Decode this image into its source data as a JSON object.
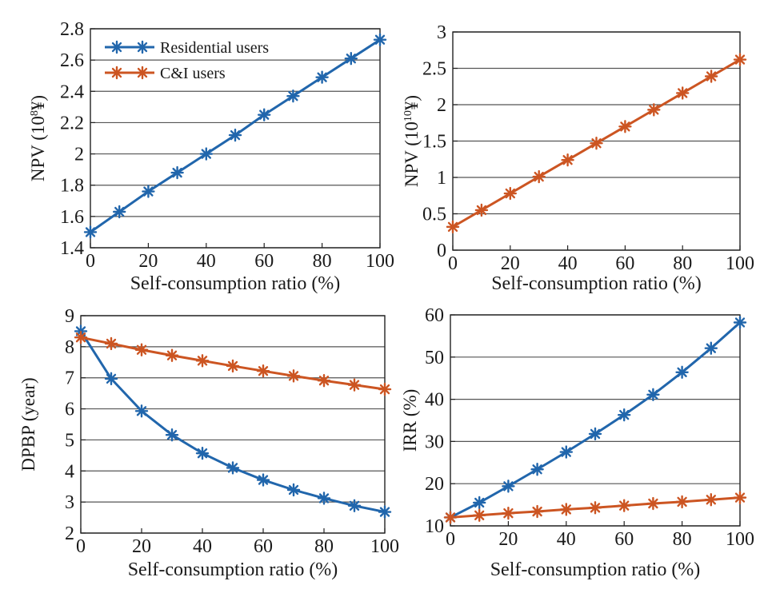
{
  "colors": {
    "residential": "#2166ac",
    "ci": "#cc5522"
  },
  "legend": {
    "residential": "Residential users",
    "ci": "C&I users"
  },
  "chart_data": [
    {
      "type": "line",
      "id": "npv-residential",
      "xlabel": "Self-consumption ratio (%)",
      "ylabel": {
        "prefix": "NPV (10",
        "sup": "8",
        "suffix": "¥)"
      },
      "x": [
        0,
        10,
        20,
        30,
        40,
        50,
        60,
        70,
        80,
        90,
        100
      ],
      "xlim": [
        0,
        100
      ],
      "xticks": [
        "0",
        "20",
        "40",
        "60",
        "80",
        "100"
      ],
      "ylim": [
        1.4,
        2.8
      ],
      "yticks": [
        "1.4",
        "1.6",
        "1.8",
        "2",
        "2.2",
        "2.4",
        "2.6",
        "2.8"
      ],
      "grid": true,
      "legend": "top-left",
      "series": [
        {
          "name": "Residential users",
          "color_key": "residential",
          "values": [
            1.5,
            1.63,
            1.76,
            1.88,
            2.0,
            2.12,
            2.25,
            2.37,
            2.49,
            2.61,
            2.73
          ]
        }
      ]
    },
    {
      "type": "line",
      "id": "npv-ci",
      "xlabel": "Self-consumption ratio (%)",
      "ylabel": {
        "prefix": "NPV (10",
        "sup": "10",
        "suffix": "¥)"
      },
      "x": [
        0,
        10,
        20,
        30,
        40,
        50,
        60,
        70,
        80,
        90,
        100
      ],
      "xlim": [
        0,
        100
      ],
      "xticks": [
        "0",
        "20",
        "40",
        "60",
        "80",
        "100"
      ],
      "ylim": [
        0,
        3
      ],
      "yticks": [
        "0",
        "0.5",
        "1",
        "1.5",
        "2",
        "2.5",
        "3"
      ],
      "grid": true,
      "series": [
        {
          "name": "C&I users",
          "color_key": "ci",
          "values": [
            0.32,
            0.55,
            0.78,
            1.01,
            1.24,
            1.47,
            1.7,
            1.93,
            2.16,
            2.39,
            2.62
          ]
        }
      ]
    },
    {
      "type": "line",
      "id": "dpbp",
      "xlabel": "Self-consumption ratio (%)",
      "ylabel": {
        "prefix": "DPBP (year)",
        "sup": "",
        "suffix": ""
      },
      "x": [
        0,
        10,
        20,
        30,
        40,
        50,
        60,
        70,
        80,
        90,
        100
      ],
      "xlim": [
        0,
        100
      ],
      "xticks": [
        "0",
        "20",
        "40",
        "60",
        "80",
        "100"
      ],
      "ylim": [
        2,
        9
      ],
      "yticks": [
        "2",
        "3",
        "4",
        "5",
        "6",
        "7",
        "8",
        "9"
      ],
      "grid": true,
      "series": [
        {
          "name": "Residential users",
          "color_key": "residential",
          "values": [
            8.5,
            6.97,
            5.93,
            5.16,
            4.57,
            4.1,
            3.71,
            3.39,
            3.12,
            2.88,
            2.68
          ]
        },
        {
          "name": "C&I users",
          "color_key": "ci",
          "values": [
            8.3,
            8.1,
            7.9,
            7.72,
            7.55,
            7.38,
            7.22,
            7.06,
            6.91,
            6.77,
            6.63
          ]
        }
      ]
    },
    {
      "type": "line",
      "id": "irr",
      "xlabel": "Self-consumption ratio (%)",
      "ylabel": {
        "prefix": "IRR (%)",
        "sup": "",
        "suffix": ""
      },
      "x": [
        0,
        10,
        20,
        30,
        40,
        50,
        60,
        70,
        80,
        90,
        100
      ],
      "xlim": [
        0,
        100
      ],
      "xticks": [
        "0",
        "20",
        "40",
        "60",
        "80",
        "100"
      ],
      "ylim": [
        10,
        60
      ],
      "yticks": [
        "10",
        "20",
        "30",
        "40",
        "50",
        "60"
      ],
      "grid": true,
      "series": [
        {
          "name": "Residential users",
          "color_key": "residential",
          "values": [
            12.0,
            15.5,
            19.4,
            23.4,
            27.5,
            31.8,
            36.3,
            41.1,
            46.4,
            52.1,
            58.2
          ]
        },
        {
          "name": "C&I users",
          "color_key": "ci",
          "values": [
            12.0,
            12.5,
            13.0,
            13.4,
            13.9,
            14.3,
            14.8,
            15.3,
            15.7,
            16.2,
            16.7
          ]
        }
      ]
    }
  ]
}
